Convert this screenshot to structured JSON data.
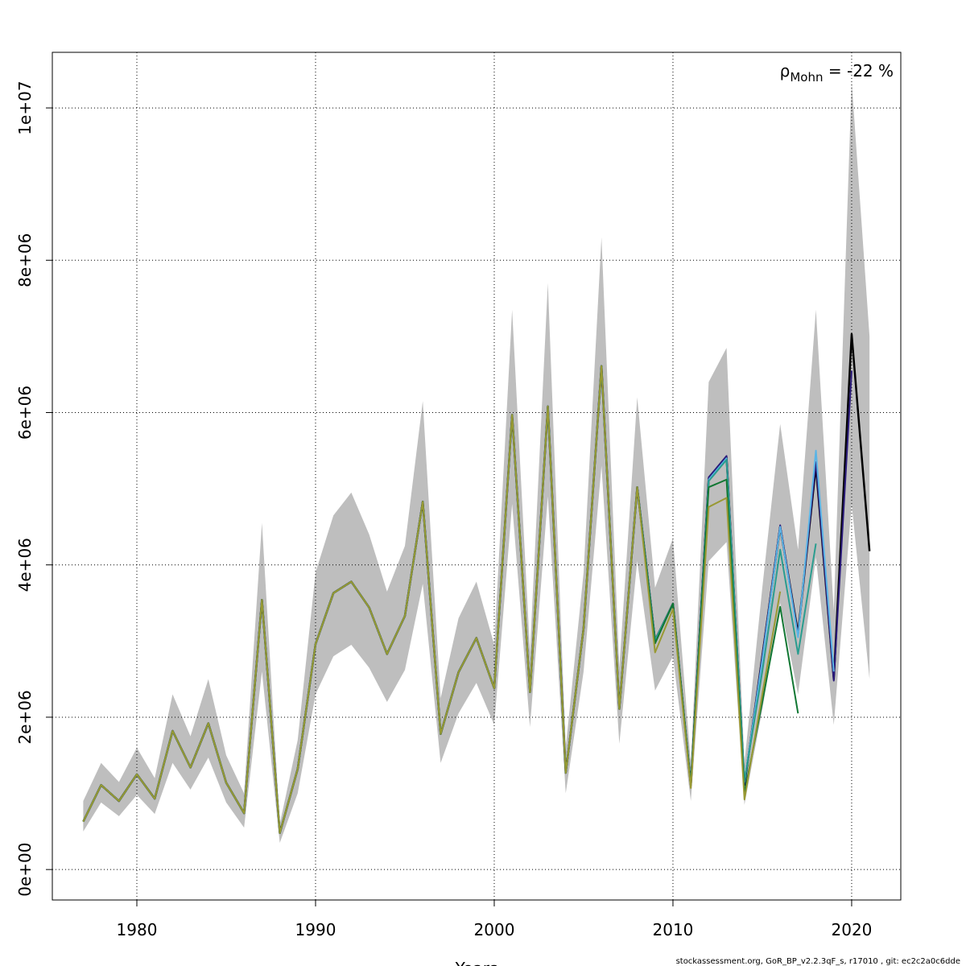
{
  "chart_data": {
    "type": "line",
    "x_label": "Years",
    "annotation": {
      "symbol": "ρ",
      "subscript": "Mohn",
      "text": " = -22 %"
    },
    "footer": "stockassessment.org, GoR_BP_v2.2.3qF_s, r17010 , git: ec2c2a0c6dde",
    "xlim": [
      1975.27,
      2022.75
    ],
    "ylim": [
      -400000,
      10730000
    ],
    "xticks": [
      1980,
      1990,
      2000,
      2010,
      2020
    ],
    "yticks": [
      {
        "value": 0,
        "label": "0e+00"
      },
      {
        "value": 2000000,
        "label": "2e+06"
      },
      {
        "value": 4000000,
        "label": "4e+06"
      },
      {
        "value": 6000000,
        "label": "6e+06"
      },
      {
        "value": 8000000,
        "label": "8e+06"
      },
      {
        "value": 10000000,
        "label": "1e+07"
      }
    ],
    "grid": true,
    "x": [
      1977,
      1978,
      1979,
      1980,
      1981,
      1982,
      1983,
      1984,
      1985,
      1986,
      1987,
      1988,
      1989,
      1990,
      1991,
      1992,
      1993,
      1994,
      1995,
      1996,
      1997,
      1998,
      1999,
      2000,
      2001,
      2002,
      2003,
      2004,
      2005,
      2006,
      2007,
      2008,
      2009,
      2010,
      2011,
      2012,
      2013,
      2014,
      2015,
      2016,
      2017,
      2018,
      2019,
      2020,
      2021
    ],
    "band": {
      "color": "#bebebe",
      "upper": [
        900000,
        1400000,
        1150000,
        1600000,
        1200000,
        2300000,
        1750000,
        2500000,
        1500000,
        1000000,
        4550000,
        600000,
        1700000,
        3900000,
        4650000,
        4950000,
        4400000,
        3650000,
        4250000,
        6150000,
        2250000,
        3300000,
        3780000,
        2950000,
        7350000,
        2850000,
        7700000,
        1600000,
        3900000,
        8300000,
        2650000,
        6200000,
        3700000,
        4350000,
        1400000,
        6400000,
        6850000,
        1400000,
        3700000,
        5850000,
        4200000,
        7350000,
        3400000,
        10350000,
        7000000
      ],
      "lower": [
        500000,
        880000,
        700000,
        980000,
        730000,
        1400000,
        1050000,
        1470000,
        880000,
        550000,
        2600000,
        350000,
        1000000,
        2300000,
        2800000,
        2950000,
        2650000,
        2200000,
        2620000,
        3750000,
        1400000,
        2050000,
        2450000,
        1900000,
        4800000,
        1870000,
        4900000,
        1000000,
        2600000,
        5300000,
        1650000,
        4050000,
        2350000,
        2800000,
        900000,
        4050000,
        4300000,
        850000,
        2100000,
        3500000,
        2300000,
        4100000,
        1900000,
        4800000,
        2500000
      ]
    },
    "series": [
      {
        "color": "#000000",
        "values": [
          630000,
          1110000,
          900000,
          1250000,
          930000,
          1820000,
          1340000,
          1920000,
          1140000,
          740000,
          3540000,
          480000,
          1320000,
          2960000,
          3630000,
          3780000,
          3440000,
          2830000,
          3330000,
          4830000,
          1780000,
          2590000,
          3040000,
          2380000,
          5970000,
          2330000,
          6080000,
          1270000,
          3170000,
          6610000,
          2110000,
          5020000,
          3010000,
          3490000,
          1110000,
          5130000,
          5410000,
          1110000,
          2800000,
          4500000,
          3100000,
          5300000,
          2500000,
          7030000,
          4180000
        ]
      },
      {
        "color": "#2a1a7a",
        "values": [
          630000,
          1110000,
          900000,
          1250000,
          930000,
          1820000,
          1340000,
          1920000,
          1140000,
          740000,
          3540000,
          480000,
          1320000,
          2960000,
          3630000,
          3780000,
          3440000,
          2830000,
          3330000,
          4830000,
          1780000,
          2590000,
          3040000,
          2380000,
          5970000,
          2330000,
          6080000,
          1270000,
          3170000,
          6610000,
          2110000,
          5020000,
          3010000,
          3490000,
          1110000,
          5150000,
          5430000,
          1120000,
          2800000,
          4520000,
          3080000,
          5350000,
          2480000,
          6550000,
          null
        ]
      },
      {
        "color": "#5ab4e6",
        "values": [
          630000,
          1110000,
          900000,
          1250000,
          930000,
          1820000,
          1340000,
          1920000,
          1140000,
          740000,
          3540000,
          480000,
          1320000,
          2960000,
          3630000,
          3780000,
          3440000,
          2830000,
          3330000,
          4830000,
          1780000,
          2590000,
          3040000,
          2380000,
          5970000,
          2330000,
          6080000,
          1270000,
          3170000,
          6610000,
          2110000,
          5020000,
          3010000,
          3490000,
          1110000,
          5120000,
          5400000,
          1150000,
          2750000,
          4500000,
          3050000,
          5500000,
          2600000,
          null,
          null
        ]
      },
      {
        "color": "#2a9d8f",
        "values": [
          630000,
          1110000,
          900000,
          1250000,
          930000,
          1820000,
          1340000,
          1920000,
          1140000,
          740000,
          3540000,
          480000,
          1320000,
          2960000,
          3630000,
          3780000,
          3440000,
          2830000,
          3330000,
          4830000,
          1780000,
          2590000,
          3040000,
          2380000,
          5970000,
          2330000,
          6080000,
          1270000,
          3170000,
          6610000,
          2110000,
          5020000,
          3010000,
          3490000,
          1110000,
          5100000,
          5380000,
          1150000,
          2600000,
          4200000,
          2830000,
          4280000,
          null,
          null,
          null
        ]
      },
      {
        "color": "#117733",
        "values": [
          630000,
          1110000,
          900000,
          1250000,
          930000,
          1820000,
          1340000,
          1920000,
          1140000,
          740000,
          3540000,
          480000,
          1320000,
          2960000,
          3630000,
          3780000,
          3440000,
          2830000,
          3330000,
          4830000,
          1780000,
          2590000,
          3040000,
          2380000,
          5970000,
          2330000,
          6080000,
          1270000,
          3170000,
          6610000,
          2110000,
          5020000,
          2970000,
          3490000,
          1110000,
          5020000,
          5120000,
          1000000,
          2200000,
          3450000,
          2050000,
          null,
          null,
          null,
          null
        ]
      },
      {
        "color": "#999933",
        "values": [
          630000,
          1110000,
          900000,
          1250000,
          930000,
          1820000,
          1340000,
          1920000,
          1140000,
          740000,
          3540000,
          480000,
          1320000,
          2960000,
          3630000,
          3780000,
          3440000,
          2830000,
          3330000,
          4830000,
          1780000,
          2590000,
          3040000,
          2380000,
          5970000,
          2330000,
          6080000,
          1270000,
          3170000,
          6610000,
          2110000,
          5020000,
          2850000,
          3420000,
          1070000,
          4760000,
          4880000,
          920000,
          2300000,
          3650000,
          null,
          null,
          null,
          null,
          null
        ]
      }
    ]
  }
}
